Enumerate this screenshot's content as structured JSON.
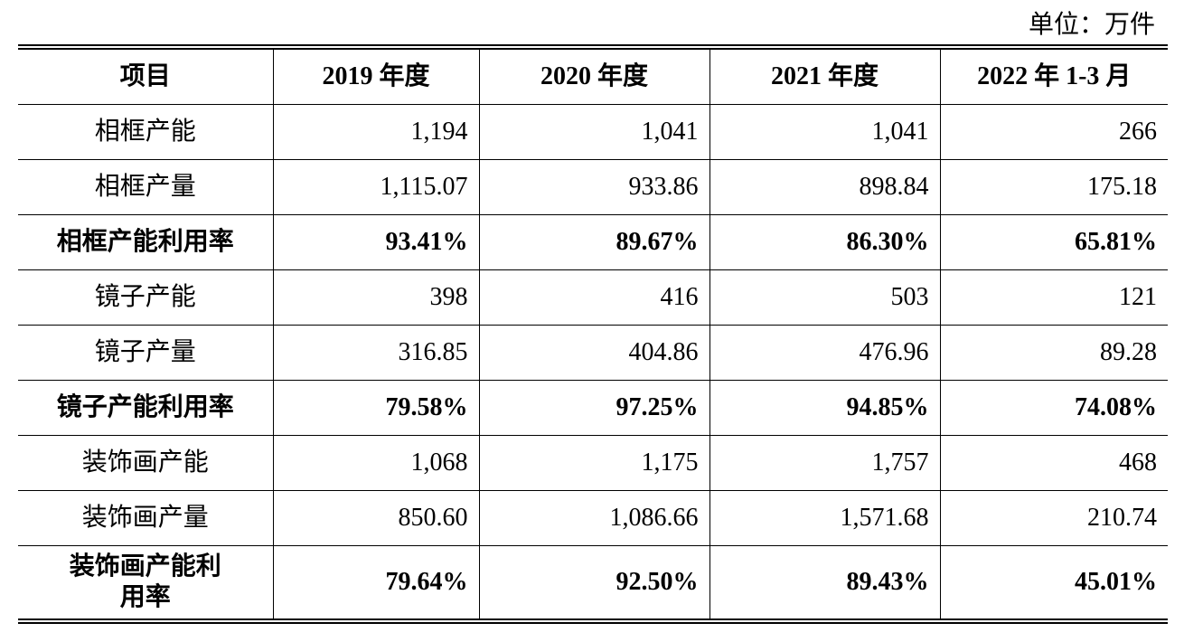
{
  "unit": "单位：万件",
  "table": {
    "header": [
      "项目",
      "2019 年度",
      "2020 年度",
      "2021 年度",
      "2022 年 1-3 月"
    ],
    "rows": [
      [
        "相框产能",
        "1,194",
        "1,041",
        "1,041",
        "266"
      ],
      [
        "相框产量",
        "1,115.07",
        "933.86",
        "898.84",
        "175.18"
      ],
      [
        "相框产能利用率",
        "93.41%",
        "89.67%",
        "86.30%",
        "65.81%"
      ],
      [
        "镜子产能",
        "398",
        "416",
        "503",
        "121"
      ],
      [
        "镜子产量",
        "316.85",
        "404.86",
        "476.96",
        "89.28"
      ],
      [
        "镜子产能利用率",
        "79.58%",
        "97.25%",
        "94.85%",
        "74.08%"
      ],
      [
        "装饰画产能",
        "1,068",
        "1,175",
        "1,757",
        "468"
      ],
      [
        "装饰画产量",
        "850.60",
        "1,086.66",
        "1,571.68",
        "210.74"
      ],
      [
        "装饰画产能利用率",
        "79.64%",
        "92.50%",
        "89.43%",
        "45.01%"
      ]
    ]
  }
}
